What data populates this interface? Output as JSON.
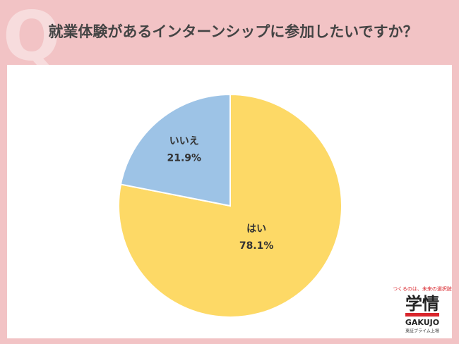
{
  "chart_data": {
    "type": "pie",
    "title": "就業体験があるインターンシップに参加したいですか？",
    "badge": "Q",
    "categories": [
      "はい",
      "いいえ"
    ],
    "values": [
      78.1,
      21.9
    ],
    "value_labels": [
      "78.1%",
      "21.9%"
    ],
    "colors": [
      "#fdd966",
      "#9dc3e6"
    ]
  },
  "logo": {
    "tagline": "つくるのは、未来の選択肢",
    "name": "学情",
    "brand": "GAKUJO",
    "listing": "東証プライム上場"
  }
}
